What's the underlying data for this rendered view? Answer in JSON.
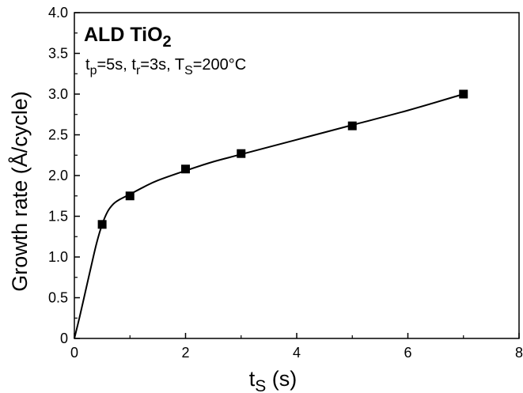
{
  "chart_data": {
    "type": "scatter",
    "title": "",
    "annotation": {
      "title_main": "ALD TiO",
      "title_sub": "2",
      "conditions": [
        {
          "base": "t",
          "sub": "p",
          "rest": "=5s, "
        },
        {
          "base": "t",
          "sub": "r",
          "rest": "=3s, "
        },
        {
          "base": "T",
          "sub": "S",
          "rest": "=200°C"
        }
      ]
    },
    "xlabel": {
      "base": "t",
      "sub": "S",
      "rest": " (s)"
    },
    "ylabel": "Growth rate (Å/cycle)",
    "xlim": [
      0,
      8
    ],
    "ylim": [
      0,
      4
    ],
    "x_ticks": [
      "0",
      "2",
      "4",
      "6",
      "8"
    ],
    "y_ticks": [
      "0",
      "0.5",
      "1.0",
      "1.5",
      "2.0",
      "2.5",
      "3.0",
      "3.5",
      "4.0"
    ],
    "grid": false,
    "series": [
      {
        "type": "scatter",
        "marker": "square",
        "x": [
          0.5,
          1,
          2,
          3,
          5,
          7
        ],
        "y": [
          1.4,
          1.75,
          2.08,
          2.27,
          2.61,
          3.0
        ]
      },
      {
        "type": "line",
        "x": [
          0,
          0.1,
          0.2,
          0.3,
          0.4,
          0.5,
          0.6,
          0.7,
          0.8,
          1,
          1.25,
          1.5,
          2,
          2.5,
          3,
          4,
          5,
          6,
          7
        ],
        "y": [
          0,
          0.28,
          0.58,
          0.88,
          1.17,
          1.4,
          1.56,
          1.65,
          1.7,
          1.77,
          1.86,
          1.94,
          2.06,
          2.17,
          2.26,
          2.44,
          2.62,
          2.8,
          3.0
        ]
      }
    ],
    "colors": {
      "marker": "#000000",
      "line": "#000000",
      "axis": "#000000"
    }
  }
}
